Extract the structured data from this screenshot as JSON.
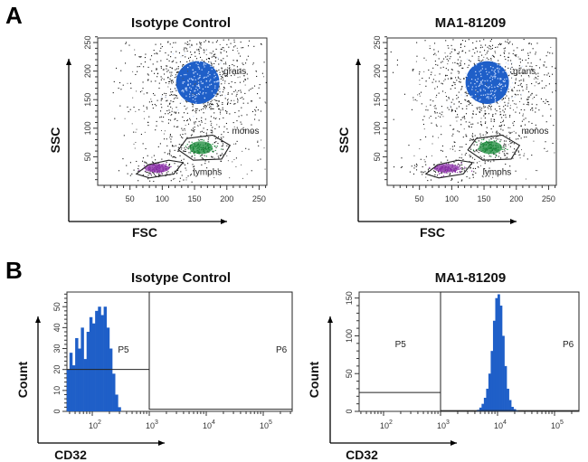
{
  "panel_labels": [
    "A",
    "B"
  ],
  "chart_data": [
    {
      "type": "scatter",
      "panel": "A",
      "title": "Isotype Control",
      "xlabel": "FSC",
      "ylabel": "SSC",
      "xlim": [
        0,
        262
      ],
      "ylim": [
        0,
        258
      ],
      "xticks": [
        50,
        100,
        150,
        200,
        250
      ],
      "yticks": [
        50,
        100,
        150,
        200,
        250
      ],
      "populations": [
        {
          "name": "grans",
          "center": [
            155,
            180
          ],
          "spread": [
            28,
            30
          ],
          "color": "#1f5fc8"
        },
        {
          "name": "monos",
          "center": [
            160,
            66
          ],
          "spread": [
            15,
            9
          ],
          "color": "#1a8a3a"
        },
        {
          "name": "lymphs",
          "center": [
            92,
            30
          ],
          "spread": [
            16,
            6
          ],
          "color": "#8b2fa8"
        }
      ],
      "gates": [
        {
          "name": "grans",
          "polygon": [
            [
              118,
              165
            ],
            [
              125,
              205
            ],
            [
              150,
              222
            ],
            [
              180,
              215
            ],
            [
              195,
              185
            ],
            [
              185,
              150
            ],
            [
              160,
              138
            ],
            [
              130,
              145
            ]
          ]
        },
        {
          "name": "monos",
          "polygon": [
            [
              125,
              62
            ],
            [
              138,
              82
            ],
            [
              178,
              88
            ],
            [
              205,
              70
            ],
            [
              192,
              46
            ],
            [
              148,
              44
            ]
          ]
        },
        {
          "name": "lymphs",
          "polygon": [
            [
              60,
              20
            ],
            [
              78,
              36
            ],
            [
              110,
              44
            ],
            [
              132,
              40
            ],
            [
              118,
              20
            ],
            [
              80,
              13
            ]
          ]
        }
      ]
    },
    {
      "type": "scatter",
      "panel": "A",
      "title": "MA1-81209",
      "xlabel": "FSC",
      "ylabel": "SSC",
      "xlim": [
        0,
        262
      ],
      "ylim": [
        0,
        258
      ],
      "xticks": [
        50,
        100,
        150,
        200,
        250
      ],
      "yticks": [
        50,
        100,
        150,
        200,
        250
      ],
      "populations": [
        {
          "name": "grans",
          "center": [
            155,
            180
          ],
          "spread": [
            28,
            30
          ],
          "color": "#1f5fc8"
        },
        {
          "name": "monos",
          "center": [
            160,
            66
          ],
          "spread": [
            15,
            9
          ],
          "color": "#1a8a3a"
        },
        {
          "name": "lymphs",
          "center": [
            92,
            30
          ],
          "spread": [
            16,
            6
          ],
          "color": "#8b2fa8"
        }
      ],
      "gates": [
        {
          "name": "grans",
          "polygon": [
            [
              118,
              165
            ],
            [
              125,
              205
            ],
            [
              150,
              222
            ],
            [
              180,
              215
            ],
            [
              195,
              185
            ],
            [
              185,
              150
            ],
            [
              160,
              138
            ],
            [
              130,
              145
            ]
          ]
        },
        {
          "name": "monos",
          "polygon": [
            [
              125,
              62
            ],
            [
              138,
              82
            ],
            [
              178,
              88
            ],
            [
              205,
              70
            ],
            [
              192,
              46
            ],
            [
              148,
              44
            ]
          ]
        },
        {
          "name": "lymphs",
          "polygon": [
            [
              60,
              20
            ],
            [
              78,
              36
            ],
            [
              110,
              44
            ],
            [
              132,
              40
            ],
            [
              118,
              20
            ],
            [
              80,
              13
            ]
          ]
        }
      ]
    },
    {
      "type": "bar",
      "subtype": "histogram",
      "panel": "B",
      "title": "Isotype Control",
      "xlabel": "CD32",
      "ylabel": "Count",
      "xscale": "log",
      "xlim": [
        35,
        316000
      ],
      "ylim": [
        0,
        57
      ],
      "xticks": [
        "10^2",
        "10^3",
        "10^4",
        "10^5"
      ],
      "yticks": [
        0,
        10,
        20,
        30,
        40,
        50
      ],
      "bin_log10_start": 1.55,
      "bin_log10_width": 0.05,
      "values": [
        20,
        28,
        22,
        35,
        30,
        40,
        25,
        38,
        45,
        42,
        48,
        50,
        46,
        50,
        40,
        30,
        18,
        8,
        2
      ],
      "color": "#1f5fc8",
      "gates": [
        {
          "name": "P5",
          "log10_range": [
            1.55,
            3
          ],
          "level": 20
        },
        {
          "name": "P6",
          "log10_range": [
            3,
            5.5
          ],
          "level": 1
        }
      ]
    },
    {
      "type": "bar",
      "subtype": "histogram",
      "panel": "B",
      "title": "MA1-81209",
      "xlabel": "CD32",
      "ylabel": "Count",
      "xscale": "log",
      "xlim": [
        37,
        316000
      ],
      "ylim": [
        0,
        158
      ],
      "xticks": [
        "10^2",
        "10^3",
        "10^4",
        "10^5"
      ],
      "yticks": [
        0,
        50,
        100,
        150
      ],
      "bin_log10_start": 3.6,
      "bin_log10_width": 0.04,
      "values": [
        0,
        2,
        5,
        10,
        18,
        30,
        50,
        80,
        120,
        150,
        155,
        140,
        100,
        60,
        30,
        15,
        6,
        3,
        1,
        0
      ],
      "color": "#1f5fc8",
      "gates": [
        {
          "name": "P5",
          "log10_range": [
            1.57,
            3
          ],
          "level": 25
        },
        {
          "name": "P6",
          "log10_range": [
            3,
            5.5
          ],
          "level": 1
        }
      ]
    }
  ]
}
